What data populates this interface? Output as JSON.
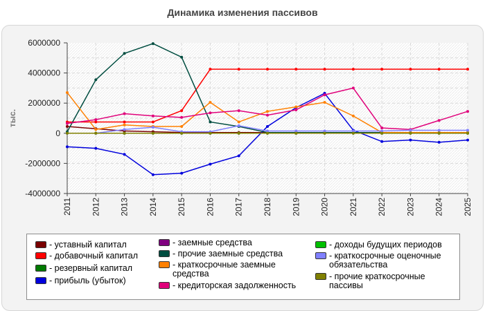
{
  "chart_data": {
    "type": "line",
    "title": "Динамика изменения пассивов",
    "ylabel": "тыс.",
    "xlabel": "",
    "ylim": [
      -4000000,
      6000000
    ],
    "ytick_values": [
      -4000000,
      -2000000,
      0,
      2000000,
      4000000,
      6000000
    ],
    "ytick_labels": [
      "-4000000",
      "-2000000",
      "0",
      "2000000",
      "4000000",
      "6000000"
    ],
    "x": [
      "2011",
      "2012",
      "2013",
      "2014",
      "2015",
      "2016",
      "2017",
      "2018",
      "2019",
      "2020",
      "2021",
      "2022",
      "2023",
      "2024",
      "2025"
    ],
    "legend_position": "bottom",
    "grid": true,
    "series": [
      {
        "name": "уставный капитал",
        "color": "#7a0000",
        "values": [
          450000,
          300000,
          150000,
          100000,
          50000,
          50000,
          50000,
          50000,
          50000,
          50000,
          50000,
          50000,
          50000,
          50000,
          50000
        ]
      },
      {
        "name": "добавочный капитал",
        "color": "#ff0000",
        "values": [
          750000,
          750000,
          750000,
          750000,
          1500000,
          4250000,
          4250000,
          4250000,
          4250000,
          4250000,
          4250000,
          4250000,
          4250000,
          4250000,
          4250000
        ]
      },
      {
        "name": "резервный капитал",
        "color": "#007a00",
        "values": [
          0,
          0,
          0,
          0,
          0,
          0,
          0,
          0,
          0,
          0,
          0,
          0,
          0,
          0,
          0
        ]
      },
      {
        "name": "прибыль (убыток)",
        "color": "#0000dd",
        "values": [
          -900000,
          -1000000,
          -1400000,
          -2750000,
          -2650000,
          -2050000,
          -1500000,
          450000,
          1700000,
          2650000,
          200000,
          -550000,
          -450000,
          -600000,
          -450000
        ]
      },
      {
        "name": "заемные средства",
        "color": "#800080",
        "values": [
          0,
          0,
          0,
          0,
          0,
          0,
          0,
          0,
          0,
          0,
          0,
          0,
          0,
          0,
          0
        ]
      },
      {
        "name": "прочие заемные средства",
        "color": "#004d40",
        "values": [
          100000,
          3550000,
          5300000,
          5950000,
          5050000,
          750000,
          450000,
          50000,
          50000,
          50000,
          50000,
          50000,
          50000,
          50000,
          50000
        ]
      },
      {
        "name": "краткосрочные заемные средства",
        "color": "#ff8000",
        "values": [
          2700000,
          250000,
          550000,
          450000,
          450000,
          2050000,
          750000,
          1450000,
          1750000,
          2050000,
          1150000,
          50000,
          50000,
          50000,
          50000
        ]
      },
      {
        "name": "кредиторская задолженность",
        "color": "#e0007a",
        "values": [
          650000,
          900000,
          1300000,
          1150000,
          1050000,
          1350000,
          1500000,
          1200000,
          1550000,
          2550000,
          3000000,
          350000,
          250000,
          850000,
          1450000
        ]
      },
      {
        "name": "доходы будущих периодов",
        "color": "#00c000",
        "values": [
          0,
          0,
          0,
          0,
          0,
          0,
          0,
          0,
          0,
          0,
          0,
          0,
          0,
          0,
          0
        ]
      },
      {
        "name": "краткосрочные оценочные обязательства",
        "color": "#8080ff",
        "values": [
          0,
          0,
          250000,
          400000,
          100000,
          100000,
          500000,
          150000,
          150000,
          150000,
          150000,
          150000,
          200000,
          200000,
          200000
        ]
      },
      {
        "name": "прочие краткосрочные пассивы",
        "color": "#808000",
        "values": [
          0,
          0,
          0,
          0,
          0,
          0,
          0,
          0,
          0,
          0,
          0,
          0,
          0,
          0,
          0
        ]
      }
    ],
    "legend_order": [
      0,
      1,
      2,
      3,
      4,
      5,
      6,
      7,
      8,
      9,
      10
    ]
  }
}
